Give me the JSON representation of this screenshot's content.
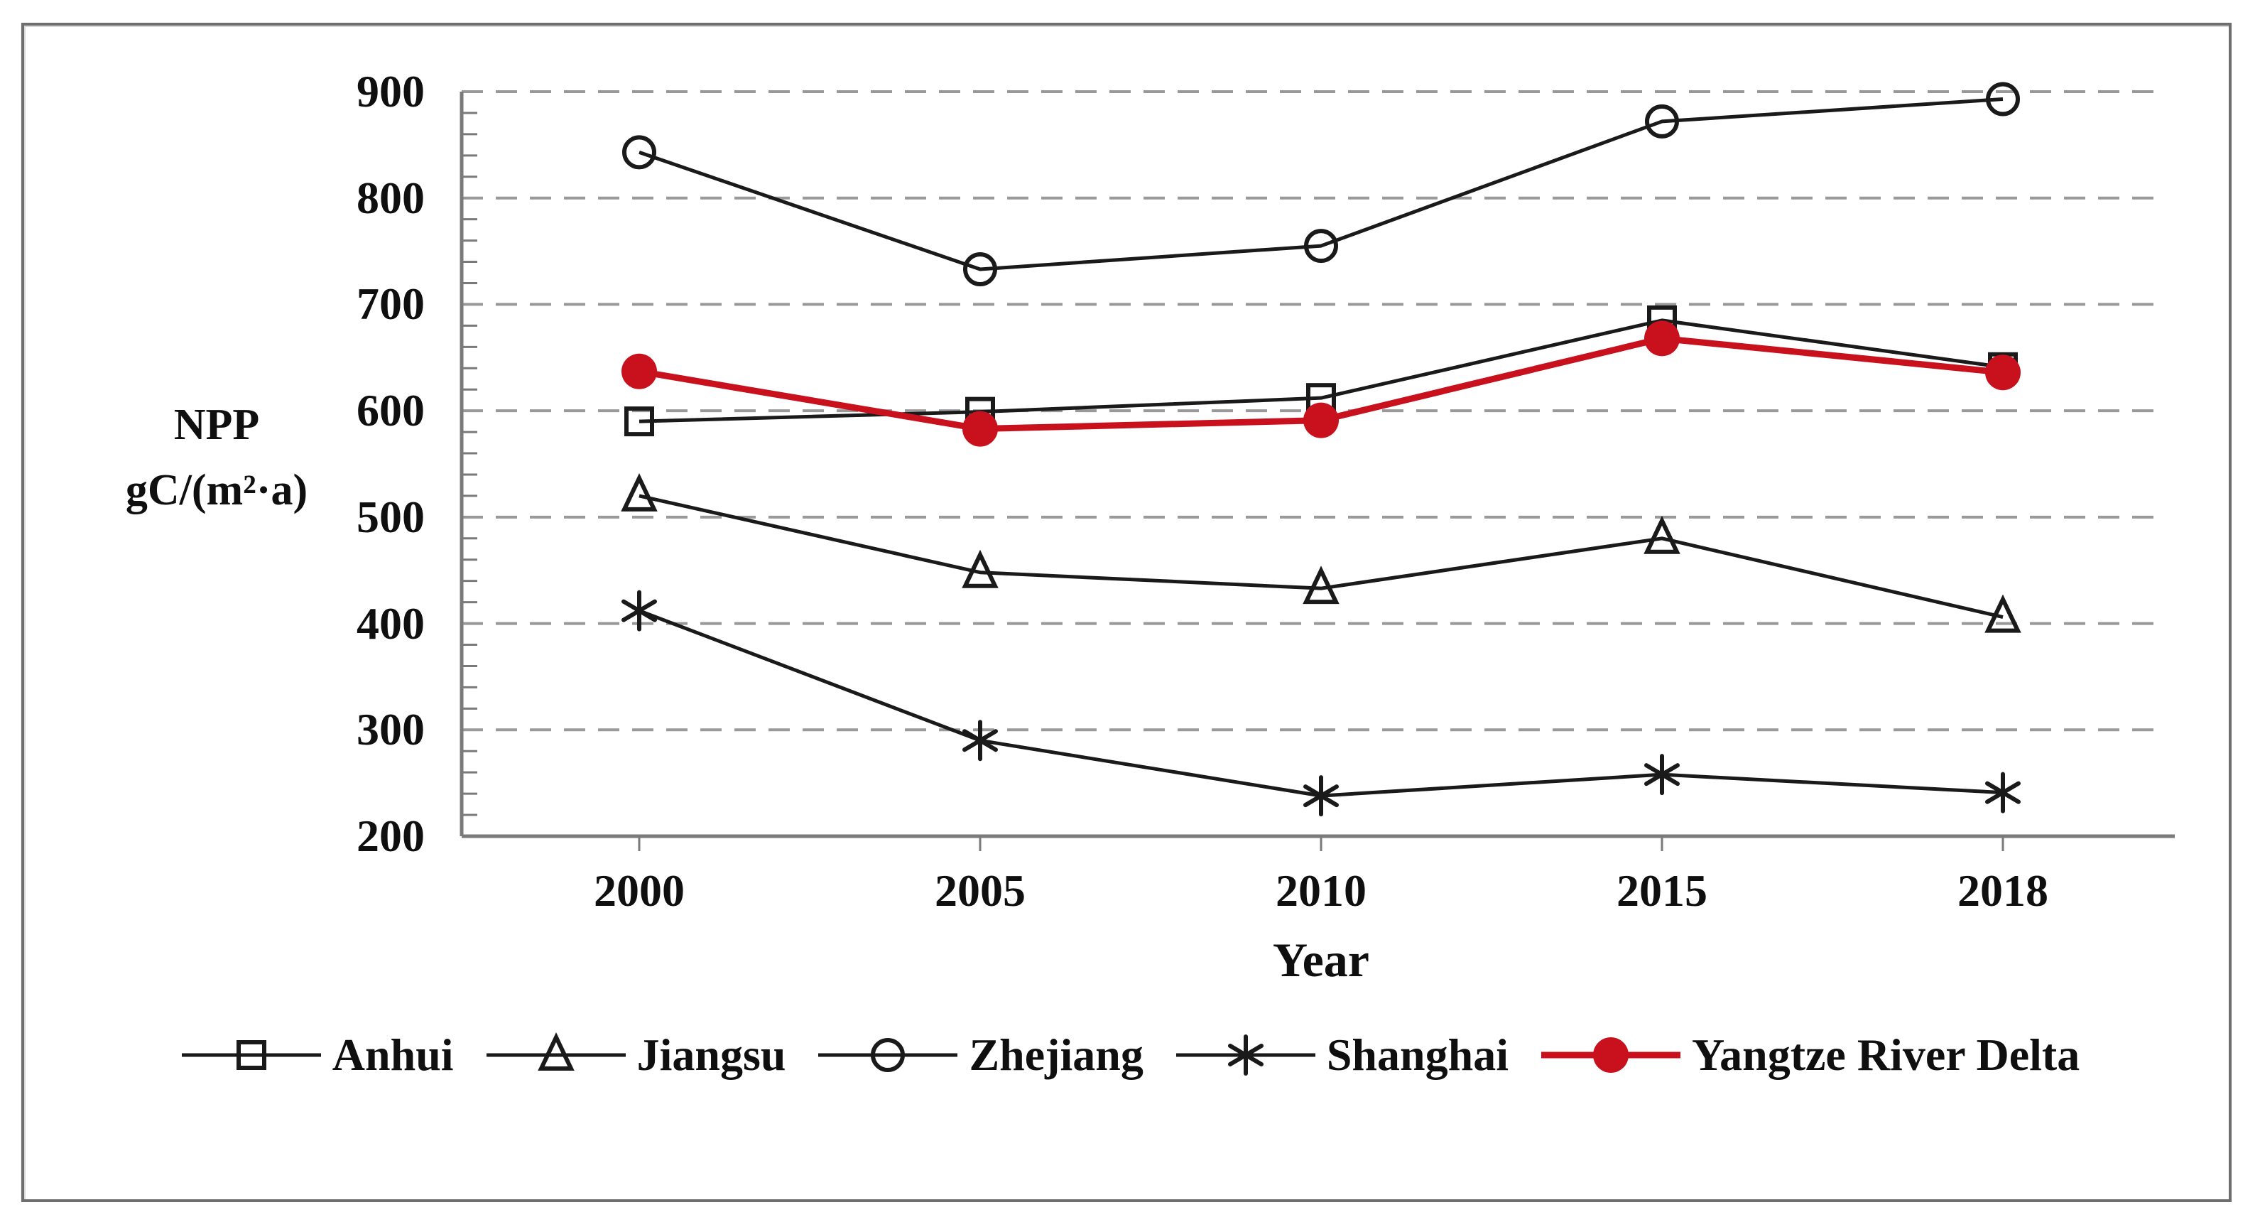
{
  "figure": {
    "background_color": "#ffffff",
    "frame_color": "#6e6e6e",
    "axis_color": "#7a7a7a",
    "grid_color": "#999999",
    "text_color": "#0f0f0f",
    "black_series_color": "#1a1a1a",
    "red_series_color": "#c8111d"
  },
  "chart_data": {
    "type": "line",
    "title": "",
    "xlabel": "Year",
    "ylabel_line1": "NPP",
    "ylabel_line2": "gC/(m²·a)",
    "categories": [
      "2000",
      "2005",
      "2010",
      "2015",
      "2018"
    ],
    "ylim": [
      200,
      900
    ],
    "yticks": [
      900,
      800,
      700,
      600,
      500,
      400,
      300,
      200
    ],
    "ytick_minor_step": 20,
    "grid": "horizontal-dashed",
    "legend_position": "bottom",
    "series": [
      {
        "name": "Anhui",
        "marker": "open-square",
        "color": "#1a1a1a",
        "line_width": 5,
        "values": [
          590,
          599,
          612,
          685,
          641
        ]
      },
      {
        "name": "Jiangsu",
        "marker": "open-triangle",
        "color": "#1a1a1a",
        "line_width": 5,
        "values": [
          520,
          448,
          433,
          480,
          406
        ]
      },
      {
        "name": "Zhejiang",
        "marker": "open-circle",
        "color": "#1a1a1a",
        "line_width": 5,
        "values": [
          843,
          733,
          755,
          872,
          893
        ]
      },
      {
        "name": "Shanghai",
        "marker": "asterisk",
        "color": "#1a1a1a",
        "line_width": 5,
        "values": [
          412,
          290,
          238,
          258,
          241
        ]
      },
      {
        "name": "Yangtze River Delta",
        "marker": "filled-circle",
        "color": "#c8111d",
        "line_width": 9,
        "values": [
          637,
          583,
          591,
          668,
          636
        ]
      }
    ]
  }
}
